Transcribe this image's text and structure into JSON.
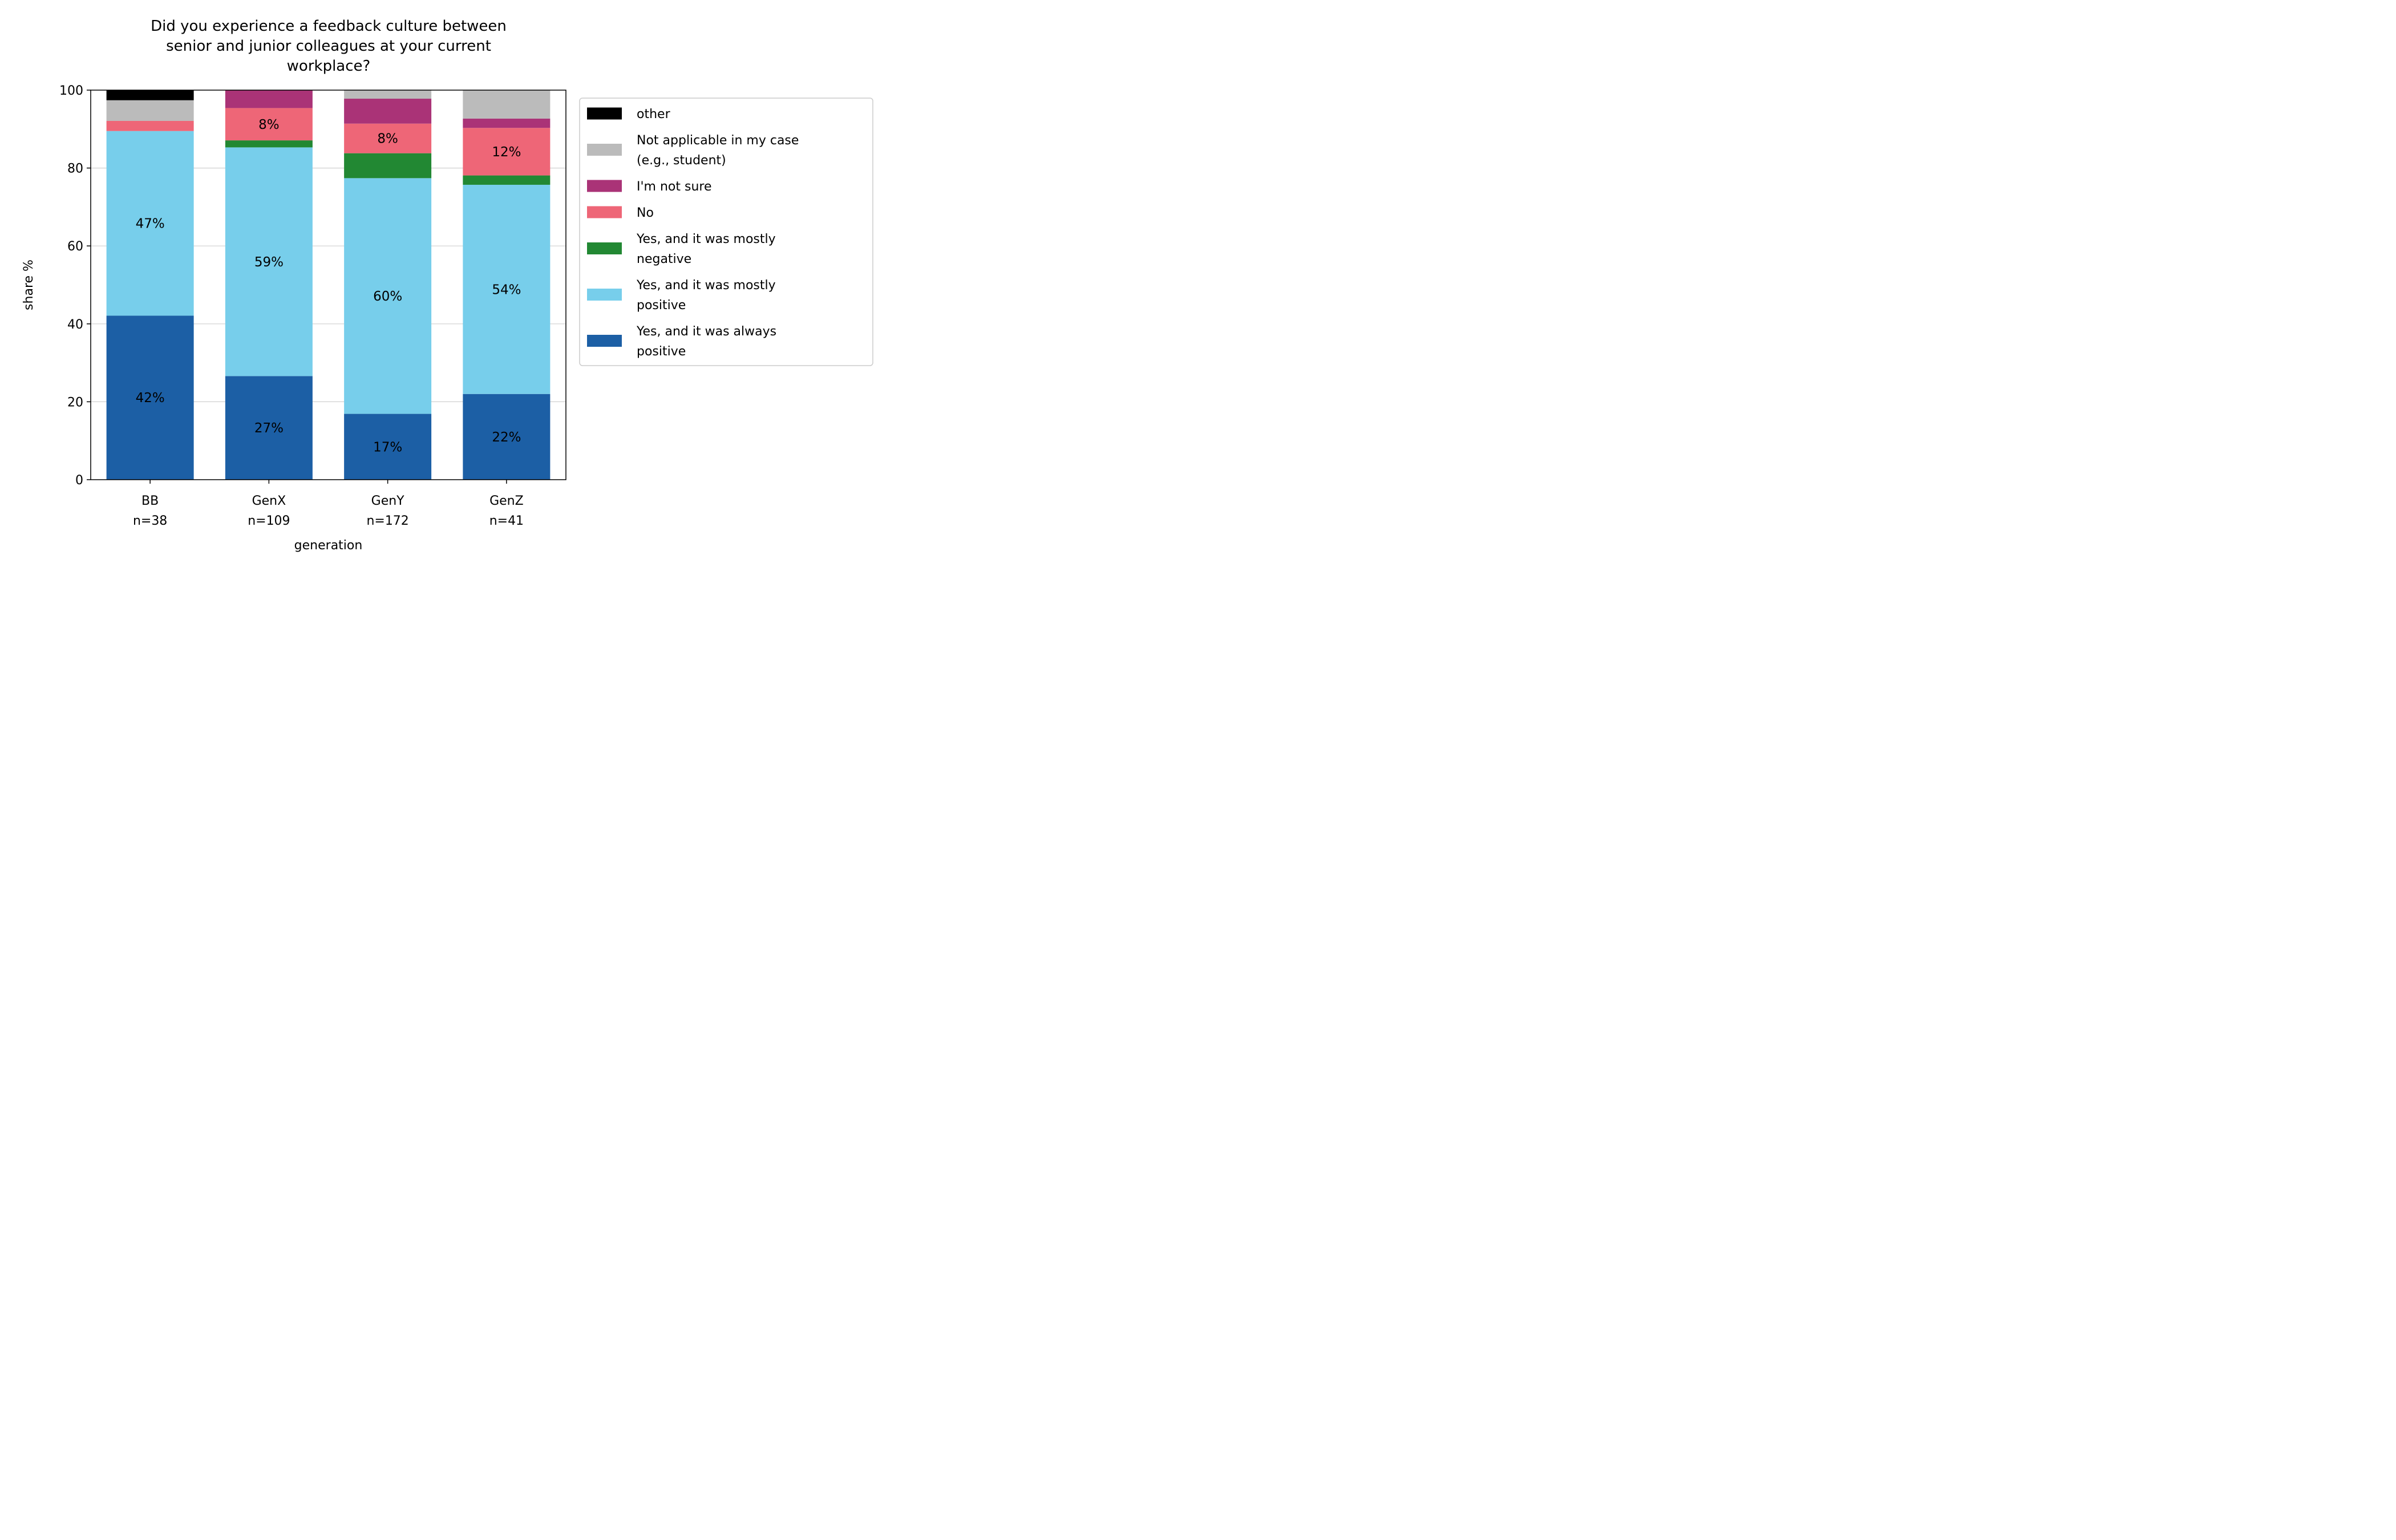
{
  "chart_data": {
    "type": "bar",
    "stacked": true,
    "title_lines": [
      "Did you experience a feedback culture between",
      "senior and junior colleagues at your current",
      "workplace?"
    ],
    "xlabel": "generation",
    "ylabel": "share %",
    "ylim": [
      0,
      100
    ],
    "yticks": [
      0,
      20,
      40,
      60,
      80,
      100
    ],
    "grid": "horizontal",
    "legend_position": "right-outside",
    "categories": [
      {
        "name": "BB",
        "n": "n=38"
      },
      {
        "name": "GenX",
        "n": "n=109"
      },
      {
        "name": "GenY",
        "n": "n=172"
      },
      {
        "name": "GenZ",
        "n": "n=41"
      }
    ],
    "series": [
      {
        "name": "Yes, and it was always positive",
        "legend_lines": [
          "Yes, and it was always",
          "positive"
        ],
        "color": "#1c5fa5",
        "values": [
          42.1,
          26.6,
          16.9,
          22.0
        ]
      },
      {
        "name": "Yes, and it was mostly positive",
        "legend_lines": [
          "Yes, and it was mostly",
          "positive"
        ],
        "color": "#77ceeb",
        "values": [
          47.4,
          58.7,
          60.5,
          53.7
        ]
      },
      {
        "name": "Yes, and it was mostly negative",
        "legend_lines": [
          "Yes, and it was mostly",
          "negative"
        ],
        "color": "#228833",
        "values": [
          0,
          1.8,
          6.4,
          2.4
        ]
      },
      {
        "name": "No",
        "legend_lines": [
          "No"
        ],
        "color": "#ee6677",
        "values": [
          2.6,
          8.3,
          7.6,
          12.2
        ]
      },
      {
        "name": "I'm not sure",
        "legend_lines": [
          "I'm not sure"
        ],
        "color": "#aa3377",
        "values": [
          0,
          4.6,
          6.4,
          2.4
        ]
      },
      {
        "name": "Not applicable in my case (e.g., student)",
        "legend_lines": [
          "Not applicable in my case",
          "(e.g., student)"
        ],
        "color": "#bbbbbb",
        "values": [
          5.3,
          0,
          2.3,
          7.3
        ]
      },
      {
        "name": "other",
        "legend_lines": [
          "other"
        ],
        "color": "#000000",
        "values": [
          2.6,
          0,
          0,
          0
        ]
      }
    ],
    "bar_labels": [
      {
        "series": 0,
        "category": 0,
        "text": "42%"
      },
      {
        "series": 0,
        "category": 1,
        "text": "27%"
      },
      {
        "series": 0,
        "category": 2,
        "text": "17%"
      },
      {
        "series": 0,
        "category": 3,
        "text": "22%"
      },
      {
        "series": 1,
        "category": 0,
        "text": "47%"
      },
      {
        "series": 1,
        "category": 1,
        "text": "59%"
      },
      {
        "series": 1,
        "category": 2,
        "text": "60%"
      },
      {
        "series": 1,
        "category": 3,
        "text": "54%"
      },
      {
        "series": 3,
        "category": 1,
        "text": "8%"
      },
      {
        "series": 3,
        "category": 2,
        "text": "8%"
      },
      {
        "series": 3,
        "category": 3,
        "text": "12%"
      }
    ]
  }
}
